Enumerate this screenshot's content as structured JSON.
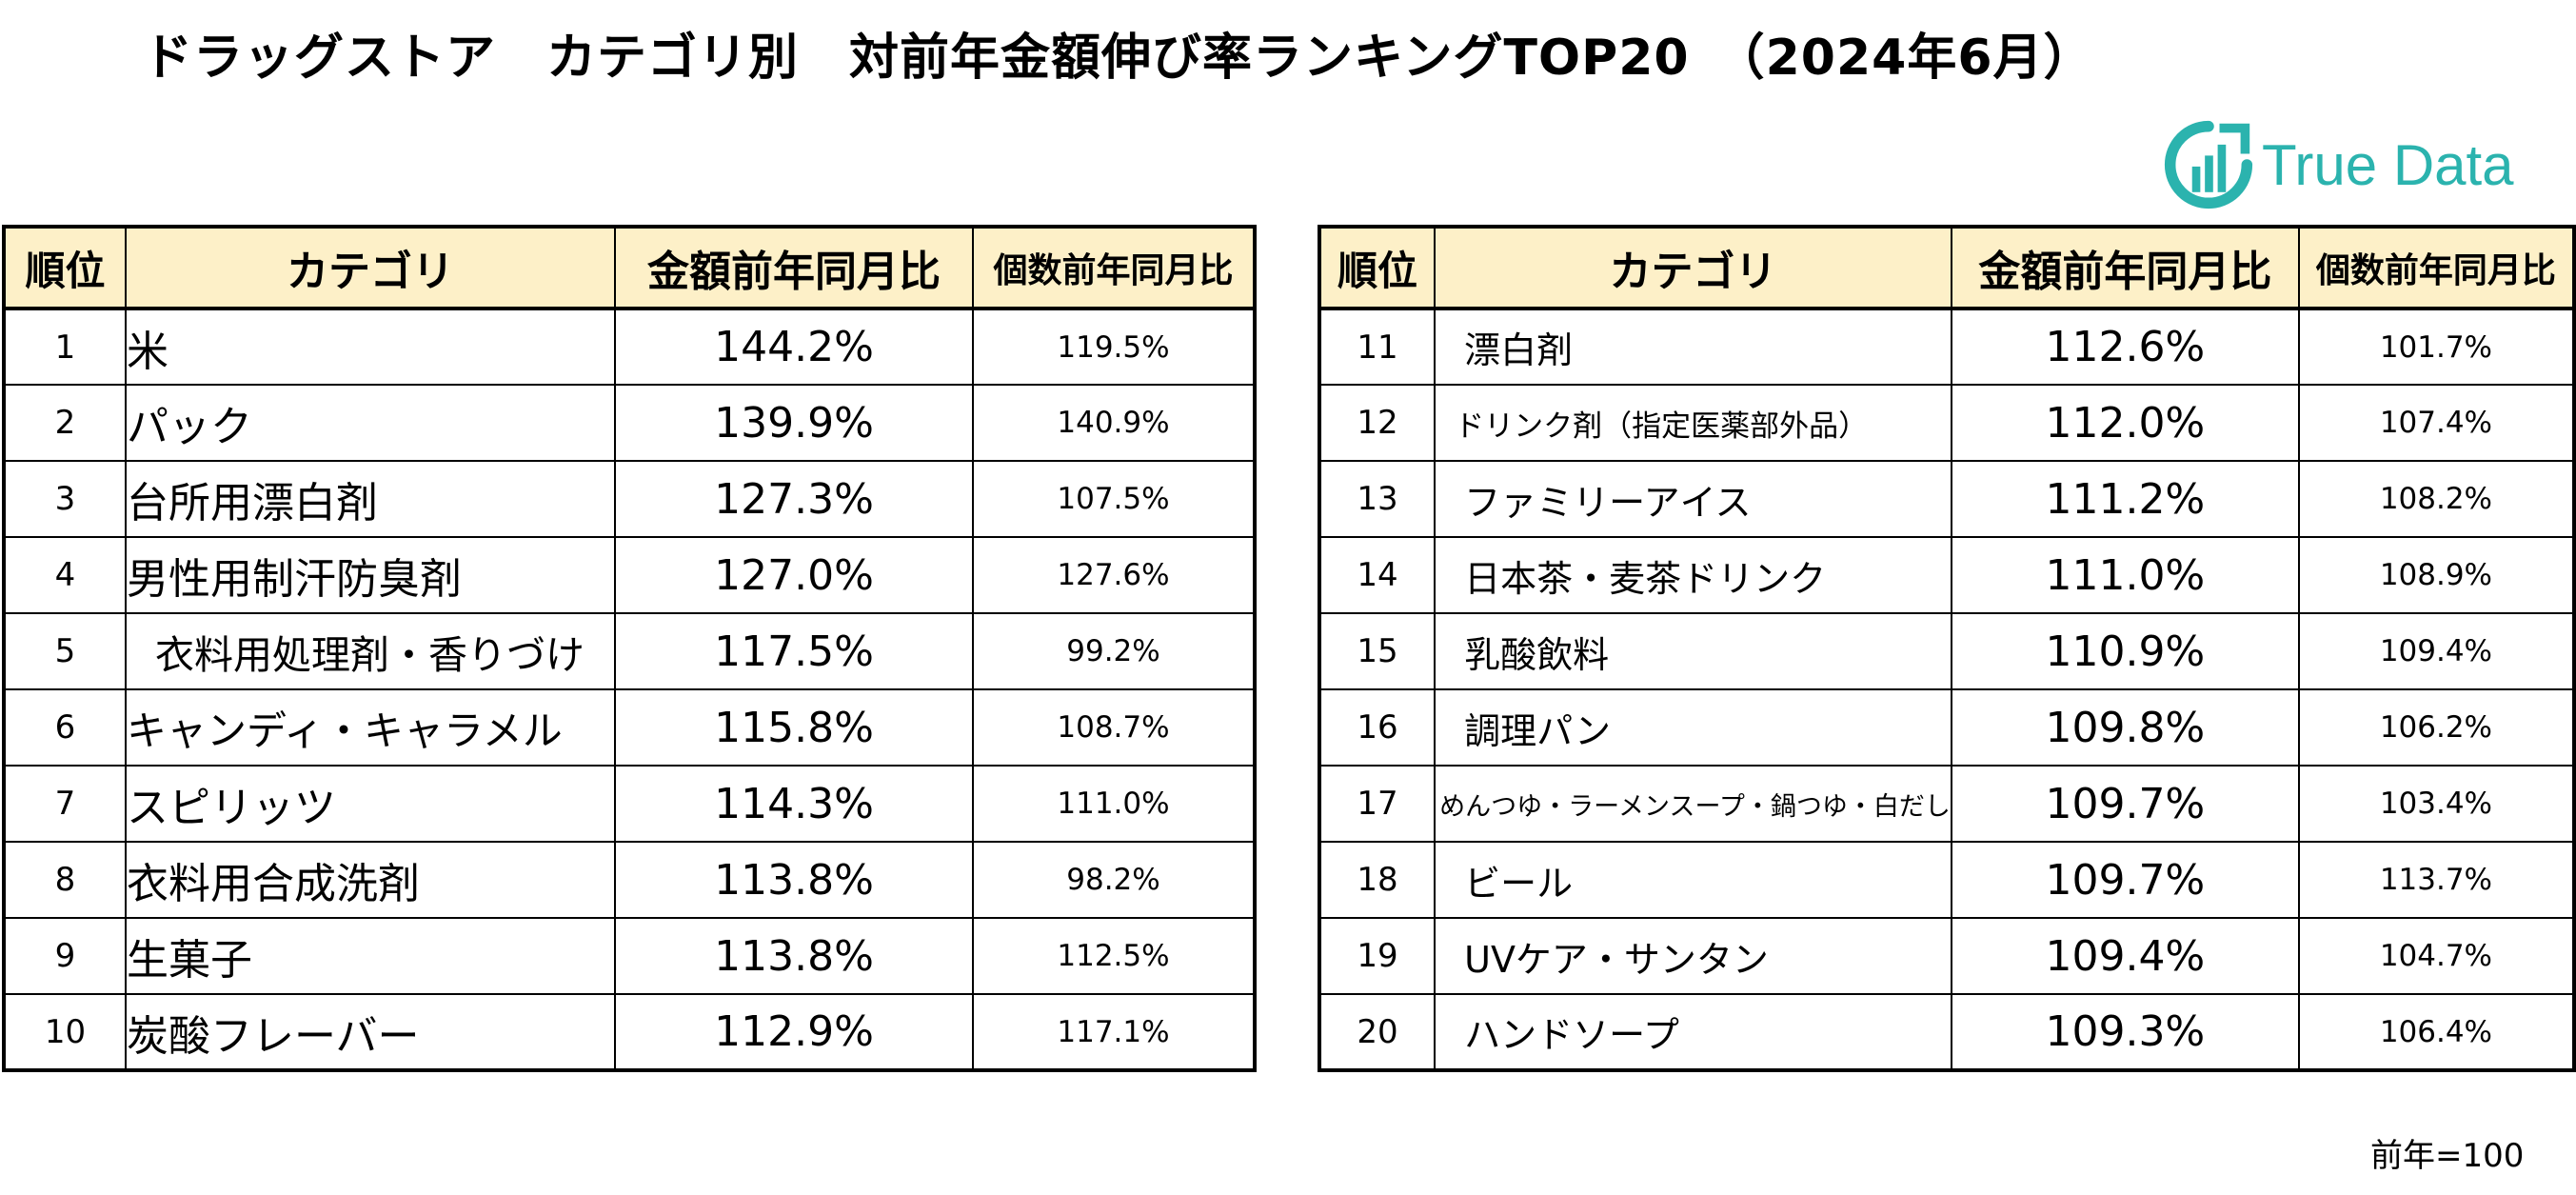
{
  "title": "ドラッグストア　カテゴリ別　対前年金額伸び率ランキングTOP20　（2024年6月）",
  "logo": {
    "text": "True Data",
    "color": "#2bb3ae",
    "icon": "bar-chart-circle-icon"
  },
  "headers": {
    "rank": "順位",
    "category": "カテゴリ",
    "amount_yoy": "金額前年同月比",
    "quantity_yoy": "個数前年同月比"
  },
  "left_rows": [
    {
      "rank": "1",
      "category": "米",
      "amount_yoy": "144.2%",
      "quantity_yoy": "119.5%"
    },
    {
      "rank": "2",
      "category": "パック",
      "amount_yoy": "139.9%",
      "quantity_yoy": "140.9%"
    },
    {
      "rank": "3",
      "category": "台所用漂白剤",
      "amount_yoy": "127.3%",
      "quantity_yoy": "107.5%"
    },
    {
      "rank": "4",
      "category": "男性用制汗防臭剤",
      "amount_yoy": "127.0%",
      "quantity_yoy": "127.6%"
    },
    {
      "rank": "5",
      "category": "衣料用処理剤・香りづけ",
      "amount_yoy": "117.5%",
      "quantity_yoy": "99.2%"
    },
    {
      "rank": "6",
      "category": "キャンディ・キャラメル",
      "amount_yoy": "115.8%",
      "quantity_yoy": "108.7%"
    },
    {
      "rank": "7",
      "category": "スピリッツ",
      "amount_yoy": "114.3%",
      "quantity_yoy": "111.0%"
    },
    {
      "rank": "8",
      "category": "衣料用合成洗剤",
      "amount_yoy": "113.8%",
      "quantity_yoy": "98.2%"
    },
    {
      "rank": "9",
      "category": "生菓子",
      "amount_yoy": "113.8%",
      "quantity_yoy": "112.5%"
    },
    {
      "rank": "10",
      "category": "炭酸フレーバー",
      "amount_yoy": "112.9%",
      "quantity_yoy": "117.1%"
    }
  ],
  "right_rows": [
    {
      "rank": "11",
      "category": "漂白剤",
      "amount_yoy": "112.6%",
      "quantity_yoy": "101.7%"
    },
    {
      "rank": "12",
      "category": "ドリンク剤（指定医薬部外品）",
      "amount_yoy": "112.0%",
      "quantity_yoy": "107.4%"
    },
    {
      "rank": "13",
      "category": "ファミリーアイス",
      "amount_yoy": "111.2%",
      "quantity_yoy": "108.2%"
    },
    {
      "rank": "14",
      "category": "日本茶・麦茶ドリンク",
      "amount_yoy": "111.0%",
      "quantity_yoy": "108.9%"
    },
    {
      "rank": "15",
      "category": "乳酸飲料",
      "amount_yoy": "110.9%",
      "quantity_yoy": "109.4%"
    },
    {
      "rank": "16",
      "category": "調理パン",
      "amount_yoy": "109.8%",
      "quantity_yoy": "106.2%"
    },
    {
      "rank": "17",
      "category": "めんつゆ・ラーメンスープ・鍋つゆ・白だし",
      "amount_yoy": "109.7%",
      "quantity_yoy": "103.4%"
    },
    {
      "rank": "18",
      "category": "ビール",
      "amount_yoy": "109.7%",
      "quantity_yoy": "113.7%"
    },
    {
      "rank": "19",
      "category": "UVケア・サンタン",
      "amount_yoy": "109.4%",
      "quantity_yoy": "104.7%"
    },
    {
      "rank": "20",
      "category": "ハンドソープ",
      "amount_yoy": "109.3%",
      "quantity_yoy": "106.4%"
    }
  ],
  "note": "前年=100",
  "colors": {
    "header_bg": "#fdf0c8",
    "border": "#000000",
    "brand": "#2bb3ae"
  }
}
